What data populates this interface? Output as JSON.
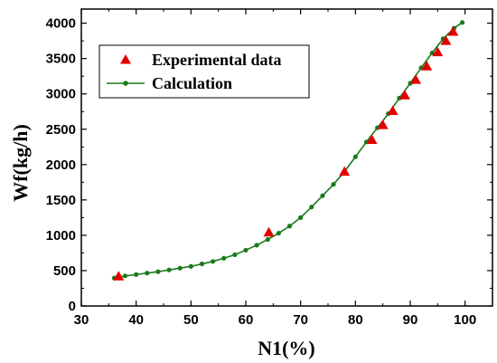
{
  "chart_data": {
    "type": "scatter",
    "xlabel": "N1(%)",
    "ylabel": "Wf(kg/h)",
    "xlim": [
      30,
      105
    ],
    "ylim": [
      0,
      4200
    ],
    "x_ticks": [
      30,
      40,
      50,
      60,
      70,
      80,
      90,
      100
    ],
    "y_ticks": [
      0,
      500,
      1000,
      1500,
      2000,
      2500,
      3000,
      3500,
      4000
    ],
    "legend_position": "top-left",
    "series": [
      {
        "name": "Experimental data",
        "marker": "triangle",
        "color": "#e30000",
        "x": [
          36.8,
          64.2,
          78.0,
          83.0,
          85.0,
          86.8,
          89.0,
          91.0,
          93.0,
          95.0,
          96.5,
          97.8
        ],
        "y": [
          420,
          1040,
          1900,
          2350,
          2560,
          2760,
          2980,
          3200,
          3390,
          3590,
          3750,
          3880
        ]
      },
      {
        "name": "Calculation",
        "marker": "dot-line",
        "color": "#1a7a1a",
        "x": [
          36.0,
          38.0,
          40.0,
          42.0,
          44.0,
          46.0,
          48.0,
          50.0,
          52.0,
          54.0,
          56.0,
          58.0,
          60.0,
          62.0,
          64.0,
          66.0,
          68.0,
          70.0,
          72.0,
          74.0,
          76.0,
          78.0,
          80.0,
          82.0,
          84.0,
          86.0,
          88.0,
          90.0,
          92.0,
          94.0,
          96.0,
          98.0,
          99.5
        ],
        "y": [
          395,
          425,
          445,
          465,
          485,
          510,
          535,
          560,
          595,
          630,
          675,
          725,
          790,
          860,
          940,
          1030,
          1130,
          1250,
          1400,
          1560,
          1720,
          1900,
          2110,
          2320,
          2520,
          2720,
          2940,
          3150,
          3370,
          3580,
          3780,
          3930,
          4010
        ]
      }
    ]
  }
}
